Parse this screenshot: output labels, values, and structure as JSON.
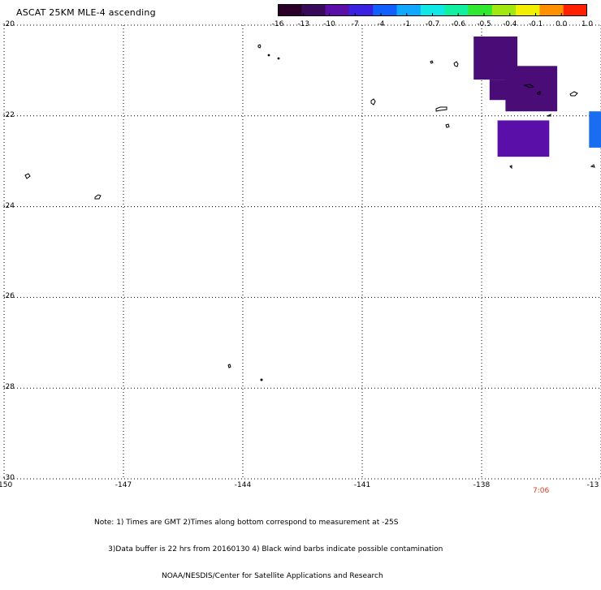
{
  "title": "ASCAT 25KM MLE-4 ascending",
  "colorbar": {
    "labels": [
      "-16",
      "-13",
      "-10",
      "-7",
      "-4",
      "-1",
      "-0.7",
      "-0.6",
      "-0.5",
      "-0.4",
      "-0.1",
      "0.0",
      "1.0"
    ],
    "colors": [
      "#2a0028",
      "#3a0a5a",
      "#5a10a8",
      "#3a20e0",
      "#1060ff",
      "#10a8ff",
      "#10e8e8",
      "#10f0a0",
      "#30e830",
      "#a0e810",
      "#f0f000",
      "#ff9000",
      "#ff2000"
    ]
  },
  "axes": {
    "y_ticks": [
      "-20",
      "-22",
      "-24",
      "-26",
      "-28",
      "-30"
    ],
    "x_ticks": [
      "-150",
      "-147",
      "-144",
      "-141",
      "-138",
      "-13"
    ],
    "lat_range": [
      -30,
      -20
    ],
    "lon_range": [
      -150,
      -135
    ]
  },
  "swath_cells": [
    {
      "lon": [
        -138.2,
        -137.1
      ],
      "lat": [
        -20.25,
        -21.2
      ],
      "color": "#4a0d78"
    },
    {
      "lon": [
        -137.8,
        -137.1
      ],
      "lat": [
        -21.2,
        -21.65
      ],
      "color": "#4a0d78"
    },
    {
      "lon": [
        -137.4,
        -136.1
      ],
      "lat": [
        -20.9,
        -21.9
      ],
      "color": "#4a0d78"
    },
    {
      "lon": [
        -137.6,
        -136.3
      ],
      "lat": [
        -22.1,
        -22.9
      ],
      "color": "#5a10a8"
    },
    {
      "lon": [
        -135.3,
        -135.0
      ],
      "lat": [
        -21.9,
        -22.7
      ],
      "color": "#1a6cf0"
    }
  ],
  "time_label": "7:06",
  "notes": [
    "Note: 1) Times are GMT 2)Times along bottom correspond to measurement at -25S",
    "      3)Data buffer is 22 hrs from 20160130 4) Black wind barbs indicate possible contamination",
    "                             NOAA/NESDIS/Center for Satellite Applications and Research"
  ]
}
